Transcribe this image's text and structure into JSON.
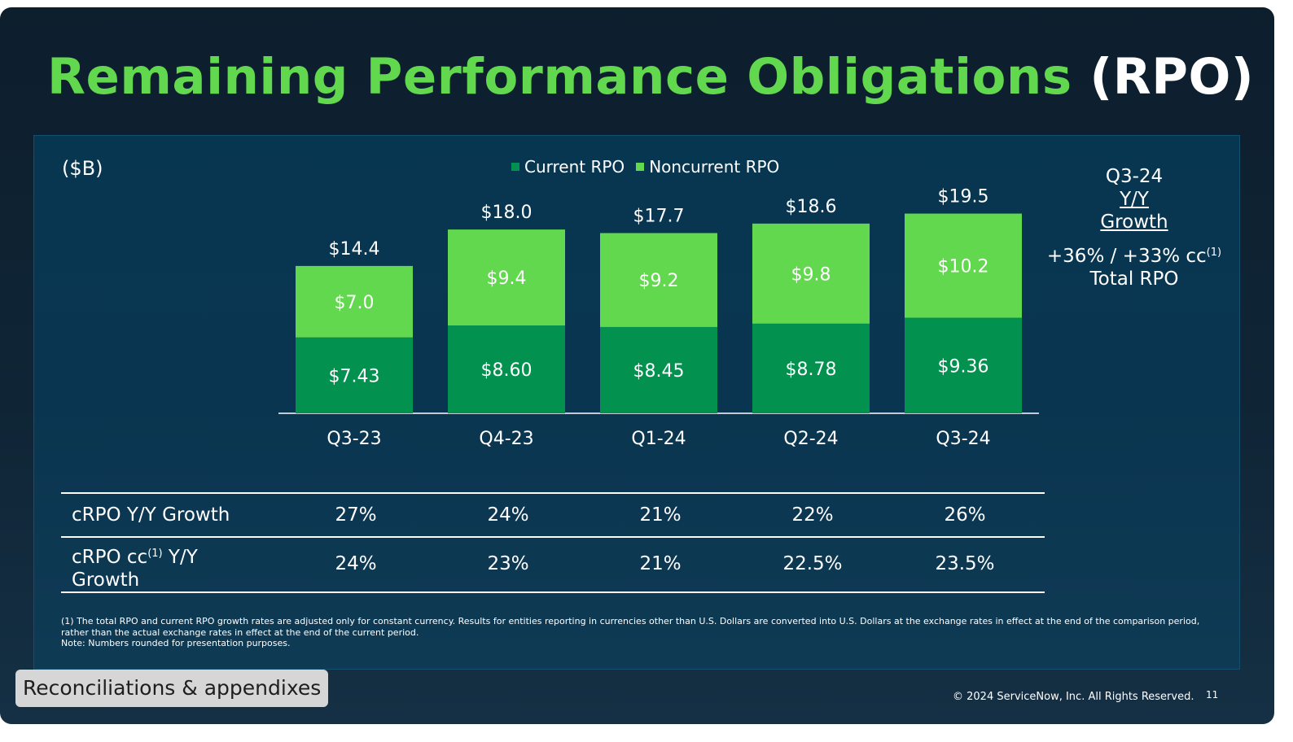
{
  "title": {
    "main": "Remaining Performance Obligations",
    "accent": "(RPO)"
  },
  "colors": {
    "current": "#02914f",
    "noncurrent": "#62d84e",
    "title_green": "#62d84e",
    "panel": "#073651",
    "text": "#ffffff"
  },
  "chart_data": {
    "type": "bar",
    "stacked": true,
    "unit_label": "($B)",
    "categories": [
      "Q3-23",
      "Q4-23",
      "Q1-24",
      "Q2-24",
      "Q3-24"
    ],
    "series": [
      {
        "name": "Current RPO",
        "values": [
          7.43,
          8.6,
          8.45,
          8.78,
          9.36
        ],
        "labels": [
          "$7.43",
          "$8.60",
          "$8.45",
          "$8.78",
          "$9.36"
        ]
      },
      {
        "name": "Noncurrent RPO",
        "values": [
          7.0,
          9.4,
          9.2,
          9.8,
          10.2
        ],
        "labels": [
          "$7.0",
          "$9.4",
          "$9.2",
          "$9.8",
          "$10.2"
        ]
      }
    ],
    "totals": [
      14.4,
      18.0,
      17.7,
      18.6,
      19.5
    ],
    "total_labels": [
      "$14.4",
      "$18.0",
      "$17.7",
      "$18.6",
      "$19.5"
    ],
    "ylim": [
      0,
      20
    ],
    "legend_position": "top-center",
    "grid": false
  },
  "sidebar": {
    "period": "Q3-24",
    "line1": "Y/Y",
    "line2": "Growth",
    "metric": "+36% / +33% cc",
    "metric_sup": "(1)",
    "metric_label": "Total RPO"
  },
  "table": {
    "rows": [
      {
        "label": "cRPO Y/Y Growth",
        "values": [
          "27%",
          "24%",
          "21%",
          "22%",
          "26%"
        ]
      },
      {
        "label_a": "cRPO cc",
        "label_sup": "(1)",
        "label_b": " Y/Y Growth",
        "values": [
          "24%",
          "23%",
          "21%",
          "22.5%",
          "23.5%"
        ]
      }
    ]
  },
  "footnote": {
    "line1": "(1) The total RPO and current RPO growth rates are adjusted only for constant currency. Results for entities reporting in currencies other than U.S. Dollars are converted into U.S. Dollars at the exchange rates in effect at the end of the comparison period, rather than the actual exchange rates in effect at the end of the current period.",
    "line2": "Note: Numbers rounded for presentation purposes."
  },
  "bottom_label": "Reconciliations & appendixes",
  "copyright": "© 2024 ServiceNow, Inc. All Rights Reserved.",
  "page_number": "11"
}
